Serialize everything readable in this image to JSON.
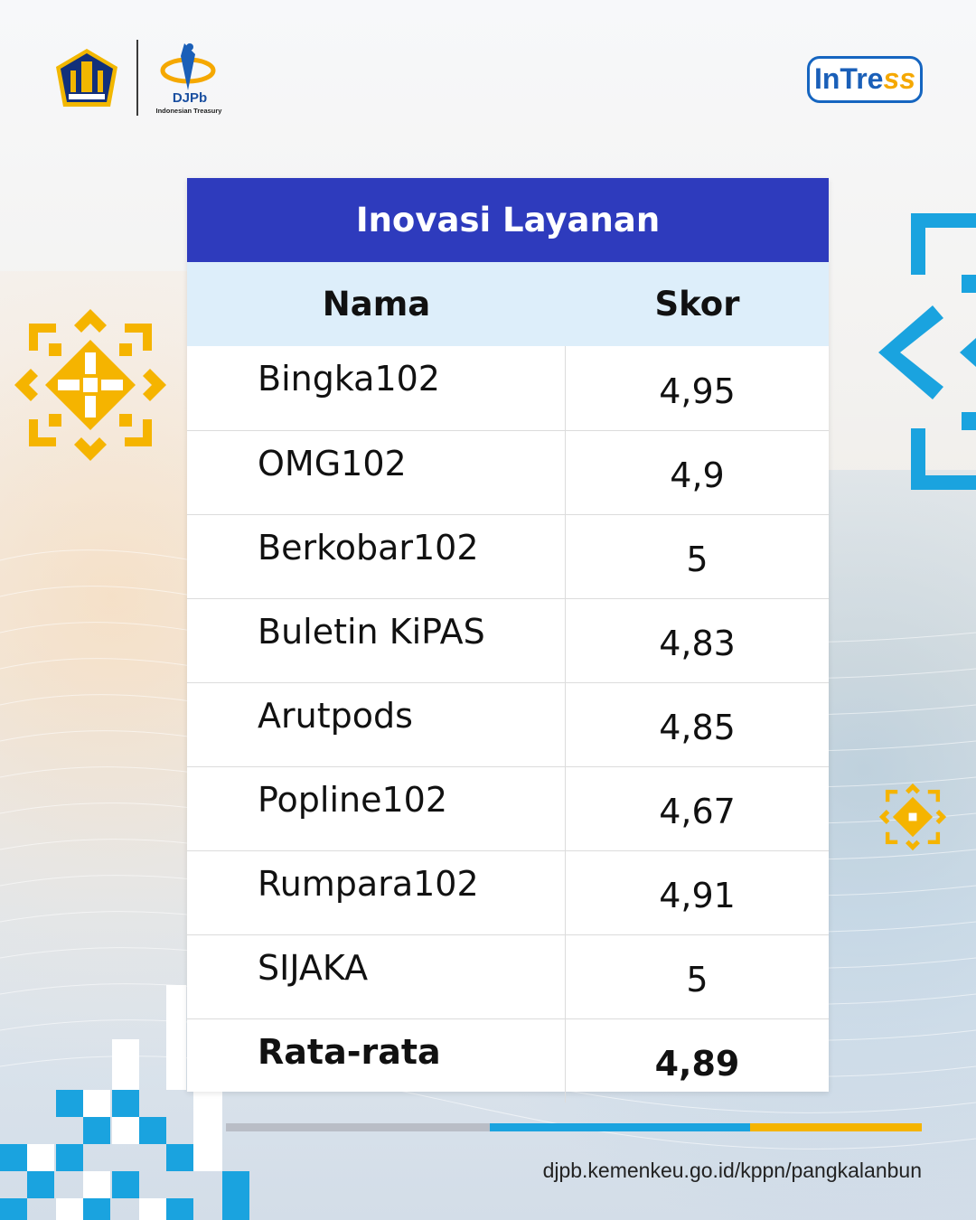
{
  "header": {
    "djpb_name": "DJPb",
    "djpb_sub": "Indonesian Treasury",
    "intress_part1": "InTre",
    "intress_part2": "ss"
  },
  "table": {
    "title": "Inovasi Layanan",
    "columns": [
      "Nama",
      "Skor"
    ],
    "rows": [
      {
        "name": "Bingka102",
        "score": "4,95"
      },
      {
        "name": "OMG102",
        "score": "4,9"
      },
      {
        "name": "Berkobar102",
        "score": "5"
      },
      {
        "name": "Buletin KiPAS",
        "score": "4,83"
      },
      {
        "name": "Arutpods",
        "score": "4,85"
      },
      {
        "name": "Popline102",
        "score": "4,67"
      },
      {
        "name": "Rumpara102",
        "score": "4,91"
      },
      {
        "name": "SIJAKA",
        "score": "5"
      }
    ],
    "average": {
      "name": "Rata-rata",
      "score": "4,89"
    }
  },
  "footer": {
    "url": "djpb.kemenkeu.go.id/kppn/pangkalanbun"
  },
  "colors": {
    "title_bg": "#2e3bbd",
    "header_bg": "#ddeefa",
    "accent_blue": "#1aa3df",
    "accent_yellow": "#f5b400"
  },
  "icons": [
    "kemenkeu-emblem-icon",
    "djpb-logo-icon",
    "intress-logo-icon",
    "ornament-icon",
    "chevron-decoration-icon"
  ]
}
